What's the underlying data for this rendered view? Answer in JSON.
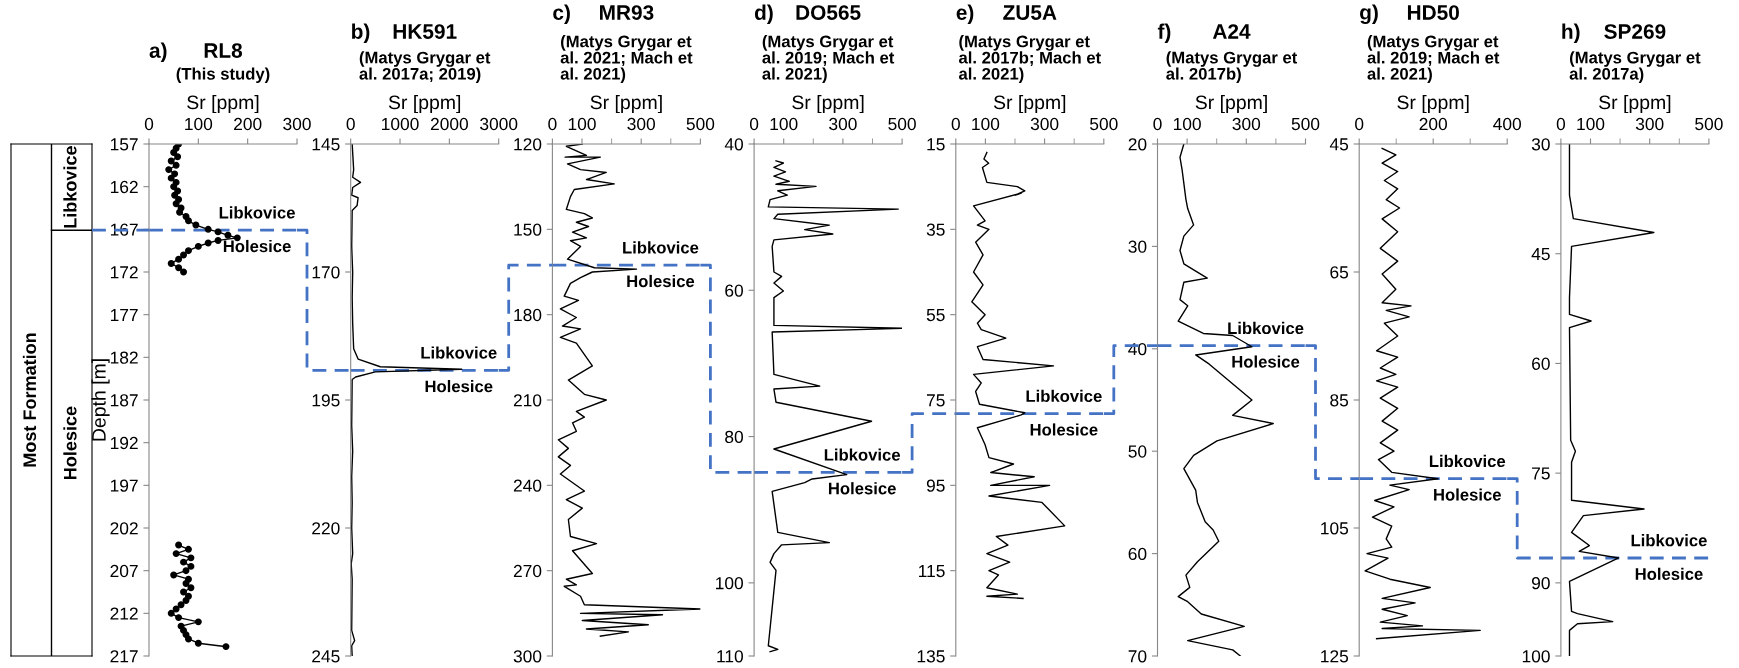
{
  "chart_data": [
    {
      "type": "other",
      "annotations": [
        "Most Formation",
        "Libkovice",
        "Holesice"
      ]
    },
    {
      "type": "line",
      "title": "RL8",
      "subtitle": "(This study)",
      "xlabel": "Sr [ppm]",
      "ylabel": "Depth [m]",
      "xlim": [
        0,
        300
      ],
      "xticks": [
        0,
        100,
        200,
        300
      ],
      "ylim": [
        217,
        157
      ],
      "yticks": [
        157,
        162,
        167,
        172,
        177,
        182,
        187,
        192,
        197,
        202,
        207,
        212,
        217
      ],
      "marker": "circle",
      "line_style": "solid",
      "series": [
        {
          "color": "#000000",
          "x": [
            60,
            55,
            50,
            58,
            45,
            55,
            40,
            52,
            45,
            55,
            50,
            58,
            52,
            60,
            55,
            65,
            62,
            75,
            80,
            95,
            120,
            140,
            160,
            179,
            140,
            120,
            100,
            80,
            70,
            60,
            45,
            60,
            70,
            null,
            60,
            80,
            55,
            85,
            70,
            85,
            75,
            50,
            80,
            75,
            85,
            70,
            80,
            75,
            65,
            55,
            45,
            60,
            100,
            65,
            70,
            75,
            80,
            100,
            156
          ],
          "values": [
            157,
            157.5,
            158,
            158.5,
            159,
            159.5,
            160,
            160.5,
            161,
            161.5,
            162,
            162.5,
            163,
            163.5,
            164,
            164.5,
            165,
            165.5,
            166,
            166.5,
            167,
            167.3,
            167.7,
            168,
            168.3,
            168.6,
            169,
            169.5,
            170,
            170.5,
            171,
            171.5,
            172,
            null,
            204,
            204.5,
            205,
            205.5,
            206,
            206.5,
            207,
            207.5,
            208,
            208.5,
            209,
            209.5,
            210,
            210.5,
            211,
            211.5,
            212,
            212.5,
            213,
            213.5,
            214,
            214.5,
            215,
            215.5,
            215.9
          ]
        }
      ],
      "ref_lines": [
        {
          "axis": "y",
          "value": 167.1,
          "color": "#4472c4",
          "line_style": "dashed"
        }
      ],
      "annotations": [
        "a)",
        "Libkovice",
        "Holesice"
      ]
    },
    {
      "type": "line",
      "title": "HK591",
      "subtitle": "(Matys Grygar et\nal. 2017a; 2019)",
      "xlabel": "Sr [ppm]",
      "xlim": [
        0,
        3000
      ],
      "xticks": [
        0,
        1000,
        2000,
        3000
      ],
      "ylim": [
        245,
        145
      ],
      "yticks": [
        145,
        170,
        195,
        220,
        245
      ],
      "marker": "none",
      "line_style": "solid",
      "series": [
        {
          "color": "#000000",
          "x": [
            30,
            60,
            40,
            200,
            40,
            20,
            150,
            130,
            30,
            20,
            40,
            30,
            40,
            60,
            150,
            600,
            2250,
            500,
            100,
            30,
            20,
            40,
            20,
            30,
            20,
            40,
            10,
            30,
            20,
            80,
            20,
            30
          ],
          "values": [
            145,
            150,
            151.5,
            152.5,
            153.5,
            155,
            155.5,
            157,
            158,
            165,
            170,
            175,
            180,
            185,
            187,
            188.5,
            189,
            189.5,
            190.5,
            191,
            200,
            205,
            210,
            215,
            220,
            225,
            227,
            230,
            240,
            242,
            243,
            245
          ]
        }
      ],
      "ref_lines": [
        {
          "axis": "y",
          "value": 189.2,
          "color": "#4472c4",
          "line_style": "dashed"
        }
      ],
      "annotations": [
        "b)",
        "Libkovice",
        "Holesice"
      ]
    },
    {
      "type": "line",
      "title": "MR93",
      "subtitle": "(Matys Grygar et\nal. 2021; Mach et\nal. 2021)",
      "xlabel": "Sr [ppm]",
      "xlim": [
        0,
        500
      ],
      "xticks": [
        0,
        100,
        {
          "value": 200,
          "label": null
        },
        300,
        {
          "value": 400,
          "label": null
        },
        500
      ],
      "ylim": [
        300,
        120
      ],
      "yticks": [
        120,
        150,
        180,
        210,
        240,
        270,
        300
      ],
      "marker": "none",
      "line_style": "solid",
      "series": [
        {
          "color": "#000000",
          "x": [
            101,
            47,
            115,
            43,
            162,
            51,
            95,
            182,
            115,
            209,
            74,
            61,
            47,
            108,
            135,
            81,
            122,
            68,
            115,
            61,
            95,
            51,
            142,
            284,
            135,
            95,
            61,
            40,
            88,
            27,
            81,
            34,
            95,
            27,
            81,
            135,
            54,
            108,
            182,
            81,
            108,
            68,
            81,
            20,
            54,
            20,
            61,
            27,
            108,
            47,
            101,
            54,
            61,
            149,
            68,
            135,
            47,
            81,
            40,
            95,
            108,
            500,
            95,
            372,
            101,
            324,
            115,
            257,
            162
          ],
          "values": [
            120,
            120.8,
            124,
            124.6,
            124.6,
            127,
            129,
            130,
            132.5,
            134,
            136,
            138.5,
            143,
            144.5,
            146,
            147.5,
            149,
            151,
            153,
            154,
            156,
            160.5,
            163.5,
            164,
            165,
            167,
            169,
            173.5,
            175,
            178,
            181,
            184,
            185,
            188,
            190,
            198,
            203,
            208,
            210,
            214,
            216,
            218,
            221,
            224,
            227,
            230,
            233,
            236,
            242,
            245,
            248,
            252,
            258,
            260.5,
            263,
            271,
            273,
            275,
            275.5,
            279,
            282,
            283.5,
            285,
            285.5,
            287.5,
            289,
            290.5,
            291.5,
            293
          ]
        }
      ],
      "ref_lines": [
        {
          "axis": "y",
          "value": 162.6,
          "color": "#4472c4",
          "line_style": "dashed"
        }
      ],
      "annotations": [
        "c)",
        "Libkovice",
        "Holesice"
      ]
    },
    {
      "type": "line",
      "title": "DO565",
      "subtitle": "(Matys Grygar et\nal. 2019; Mach et\nal. 2021)",
      "xlabel": "Sr [ppm]",
      "xlim": [
        0,
        500
      ],
      "xticks": [
        0,
        100,
        {
          "value": 200,
          "label": null
        },
        300,
        {
          "value": 400,
          "label": null
        },
        500
      ],
      "ylim": [
        110,
        40
      ],
      "yticks": [
        40,
        60,
        80,
        100,
        110
      ],
      "marker": "none",
      "line_style": "solid",
      "series": [
        {
          "color": "#000000",
          "x": [
            74,
            99,
            67,
            106,
            67,
            119,
            74,
            209,
            80,
            112,
            54,
            48,
            487,
            80,
            67,
            254,
            171,
            266,
            67,
            61,
            67,
            93,
            67,
            99,
            67,
            67,
            500,
            61,
            67,
            222,
            67,
            74,
            397,
            67,
            313,
            196,
            171,
            61,
            80,
            254,
            93,
            67,
            54,
            74,
            48,
            80,
            54
          ],
          "values": [
            42.3,
            42.6,
            43.2,
            43.8,
            44.4,
            45.1,
            45.5,
            45.8,
            46.4,
            47,
            47.6,
            48.6,
            48.9,
            49.6,
            50.2,
            51.1,
            51.7,
            52.3,
            53.1,
            54,
            57.5,
            58.1,
            59,
            60.1,
            61,
            64.8,
            65.2,
            65.7,
            71.5,
            73.1,
            73.5,
            75.3,
            77.9,
            81.7,
            85.2,
            85.8,
            86.3,
            87.5,
            93.1,
            94.5,
            94.8,
            96,
            97.2,
            98.3,
            108.6,
            109.1,
            109.4
          ]
        }
      ],
      "ref_lines": [
        {
          "axis": "y",
          "value": 84.9,
          "color": "#4472c4",
          "line_style": "dashed"
        }
      ],
      "annotations": [
        "d)",
        "Libkovice",
        "Holesice"
      ]
    },
    {
      "type": "line",
      "title": "ZU5A",
      "subtitle": "(Matys Grygar et\nal. 2017b; Mach et\nal. 2021)",
      "xlabel": "Sr [ppm]",
      "xlim": [
        0,
        500
      ],
      "xticks": [
        0,
        100,
        {
          "value": 200,
          "label": null
        },
        300,
        {
          "value": 400,
          "label": null
        },
        500
      ],
      "ylim": [
        135,
        15
      ],
      "yticks": [
        15,
        35,
        55,
        75,
        95,
        115,
        135
      ],
      "marker": "none",
      "line_style": "solid",
      "series": [
        {
          "color": "#000000",
          "x": [
            105,
            95,
            111,
            90,
            105,
            208,
            233,
            201,
            221,
            60,
            99,
            73,
            112,
            67,
            92,
            60,
            92,
            54,
            99,
            73,
            86,
            169,
            73,
            92,
            330,
            60,
            86,
            67,
            80,
            233,
            221,
            73,
            99,
            112,
            195,
            118,
            265,
            118,
            317,
            112,
            291,
            368,
            137,
            176,
            105,
            182,
            112,
            144,
            105,
            208,
            105,
            227
          ],
          "values": [
            17,
            18.5,
            19.5,
            20.5,
            24,
            25,
            26,
            27,
            26.5,
            29.5,
            33,
            34,
            35,
            38,
            41,
            45,
            48,
            52,
            55,
            57,
            58.5,
            60.5,
            62.5,
            65.5,
            67,
            69,
            71,
            73,
            76,
            78,
            78.5,
            81.5,
            85.5,
            88.5,
            90,
            92,
            93,
            95,
            95,
            97.5,
            99,
            104.5,
            107,
            109,
            111,
            113,
            115,
            116,
            119,
            120.5,
            121,
            121.5
          ]
        }
      ],
      "ref_lines": [
        {
          "axis": "y",
          "value": 78.2,
          "color": "#4472c4",
          "line_style": "dashed"
        }
      ],
      "annotations": [
        "e)",
        "Libkovice",
        "Holesice"
      ]
    },
    {
      "type": "line",
      "title": "A24",
      "subtitle": "(Matys Grygar et\nal. 2017b)",
      "xlabel": "Sr [ppm]",
      "xlim": [
        0,
        500
      ],
      "xticks": [
        0,
        100,
        {
          "value": 200,
          "label": null
        },
        300,
        {
          "value": 400,
          "label": null
        },
        500
      ],
      "ylim": [
        70,
        20
      ],
      "yticks": [
        20,
        30,
        40,
        50,
        60,
        70
      ],
      "marker": "none",
      "line_style": "solid",
      "series": [
        {
          "color": "#000000",
          "x": [
            89,
            76,
            83,
            96,
            102,
            122,
            89,
            76,
            89,
            168,
            89,
            76,
            102,
            70,
            155,
            254,
            319,
            129,
            175,
            319,
            254,
            391,
            201,
            122,
            89,
            129,
            135,
            161,
            188,
            207,
            135,
            96,
            109,
            70,
            102,
            148,
            293,
            102,
            254,
            280
          ],
          "values": [
            20,
            21.3,
            22.5,
            25.4,
            26.3,
            27.9,
            29,
            30.4,
            31.7,
            33.1,
            33.5,
            35.2,
            35.8,
            37.3,
            38.5,
            38.7,
            39.8,
            40.6,
            41.5,
            45,
            46.5,
            47.3,
            49,
            50.4,
            51.7,
            53.8,
            55,
            56.9,
            57.7,
            58.8,
            60.8,
            62.1,
            63.3,
            64.2,
            64.7,
            65.9,
            67.1,
            68.5,
            69.4,
            70
          ]
        }
      ],
      "ref_lines": [
        {
          "axis": "y",
          "value": 39.7,
          "color": "#4472c4",
          "line_style": "dashed"
        }
      ],
      "annotations": [
        "f)",
        "Libkovice",
        "Holesice"
      ]
    },
    {
      "type": "line",
      "title": "HD50",
      "subtitle": "(Matys Grygar et\nal. 2019; Mach et\nal. 2021)",
      "xlabel": "Sr [ppm]",
      "xlim": [
        0,
        400
      ],
      "xticks": [
        0,
        {
          "value": 100,
          "label": null
        },
        200,
        {
          "value": 300,
          "label": null
        },
        400
      ],
      "ylim": [
        125,
        45
      ],
      "yticks": [
        45,
        65,
        85,
        105,
        125
      ],
      "marker": "none",
      "line_style": "solid",
      "series": [
        {
          "color": "#000000",
          "x": [
            62,
            99,
            62,
            104,
            68,
            104,
            73,
            109,
            62,
            104,
            57,
            104,
            62,
            99,
            62,
            140,
            73,
            135,
            68,
            104,
            47,
            104,
            57,
            99,
            47,
            104,
            57,
            104,
            62,
            104,
            57,
            94,
            52,
            88,
            213,
            83,
            135,
            42,
            94,
            36,
            88,
            73,
            88,
            21,
            78,
            16,
            83,
            192,
            62,
            151,
            62,
            130,
            57,
            171,
            62,
            327,
            47
          ],
          "values": [
            45.7,
            46.7,
            48,
            49.3,
            50.7,
            52,
            53.7,
            55,
            56.7,
            58.7,
            61.3,
            63.3,
            65.3,
            67.7,
            69.8,
            70.3,
            71,
            72,
            73,
            75,
            77.3,
            78.3,
            80,
            81,
            82,
            83,
            84.7,
            86.3,
            88.3,
            89.7,
            91.7,
            93,
            94.3,
            96.3,
            97.3,
            98.3,
            99,
            100.7,
            101.7,
            103.3,
            104.7,
            106.7,
            108,
            109,
            109.7,
            111.7,
            113,
            114.3,
            116,
            116.7,
            117.7,
            118.7,
            119.7,
            120.3,
            120.7,
            121,
            122.3
          ]
        }
      ],
      "ref_lines": [
        {
          "axis": "y",
          "value": 97.3,
          "color": "#4472c4",
          "line_style": "dashed"
        }
      ],
      "annotations": [
        "g)",
        "Libkovice",
        "Holesice"
      ]
    },
    {
      "type": "line",
      "title": "SP269",
      "subtitle": "(Matys Grygar et\nal. 2017a)",
      "xlabel": "Sr [ppm]",
      "xlim": [
        0,
        500
      ],
      "xticks": [
        0,
        100,
        {
          "value": 200,
          "label": null
        },
        300,
        {
          "value": 400,
          "label": null
        },
        500
      ],
      "ylim": [
        100,
        30
      ],
      "yticks": [
        30,
        45,
        60,
        75,
        90,
        100
      ],
      "marker": "none",
      "line_style": "solid",
      "series": [
        {
          "color": "#000000",
          "x": [
            29,
            29,
            42,
            314,
            36,
            29,
            29,
            102,
            29,
            33,
            49,
            36,
            36,
            281,
            76,
            36,
            96,
            62,
            195,
            29,
            36,
            56,
            175,
            56,
            29,
            29
          ],
          "values": [
            30,
            37,
            40.2,
            42.1,
            44,
            51,
            53.3,
            54.2,
            55.1,
            70.5,
            72,
            73.5,
            78.7,
            79.9,
            80.8,
            83.1,
            84.9,
            85.7,
            86.6,
            89.8,
            93.9,
            94.2,
            95.3,
            95.6,
            96.5,
            100
          ]
        }
      ],
      "ref_lines": [
        {
          "axis": "y",
          "value": 86.6,
          "color": "#4472c4",
          "line_style": "dashed"
        }
      ],
      "annotations": [
        "h)",
        "Libkovice",
        "Holesice"
      ]
    }
  ]
}
